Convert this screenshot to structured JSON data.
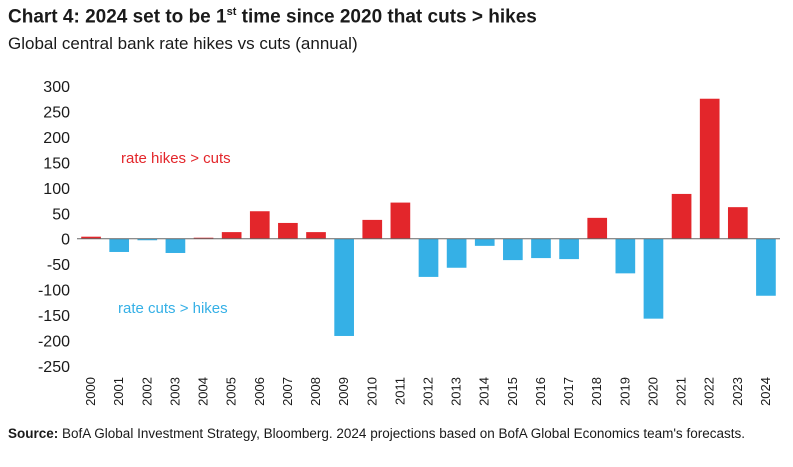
{
  "header": {
    "title_main": "Chart 4: 2024 set to be 1",
    "title_sup": "st",
    "title_rest": " time since 2020 that  cuts > hikes",
    "subtitle": "Global central bank rate hikes vs cuts (annual)"
  },
  "footer": {
    "source_label": "Source:",
    "source_text": "  BofA Global Investment Strategy, Bloomberg. 2024 projections  based on BofA Global Economics  team's forecasts."
  },
  "colors": {
    "positive": "#e3262b",
    "negative": "#35b0e6",
    "zero_line": "#666666"
  },
  "chart_data": {
    "type": "bar",
    "categories": [
      "2000",
      "2001",
      "2002",
      "2003",
      "2004",
      "2005",
      "2006",
      "2007",
      "2008",
      "2009",
      "2010",
      "2011",
      "2012",
      "2013",
      "2014",
      "2015",
      "2016",
      "2017",
      "2018",
      "2019",
      "2020",
      "2021",
      "2022",
      "2023",
      "2024"
    ],
    "values": [
      4,
      -26,
      -3,
      -28,
      2,
      13,
      54,
      31,
      13,
      -191,
      37,
      71,
      -75,
      -57,
      -14,
      -42,
      -38,
      -40,
      41,
      -68,
      -157,
      88,
      275,
      62,
      -112
    ],
    "ylim": [
      -250,
      300
    ],
    "yticks": [
      300,
      250,
      200,
      150,
      100,
      50,
      0,
      -50,
      -100,
      -150,
      -200,
      -250
    ],
    "xlabel": "",
    "ylabel": "",
    "annotations": [
      {
        "text": "rate hikes > cuts",
        "color": "#e3262b"
      },
      {
        "text": "rate cuts > hikes",
        "color": "#35b0e6"
      }
    ],
    "legend": "none",
    "grid": false
  }
}
